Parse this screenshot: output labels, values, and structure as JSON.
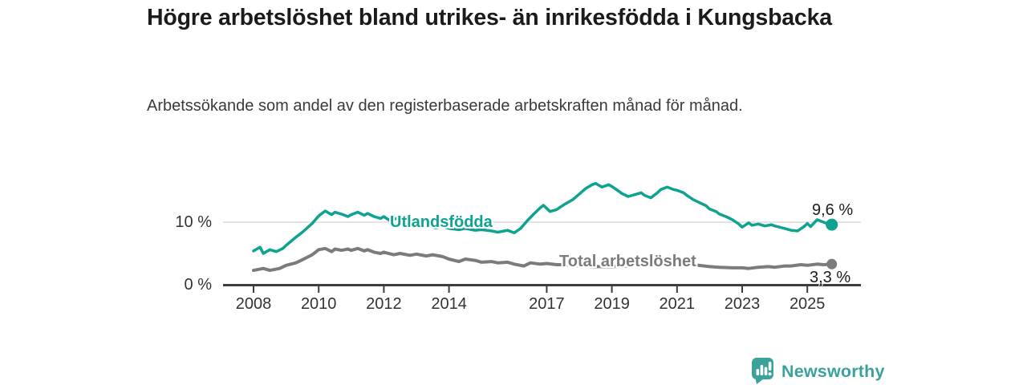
{
  "header": {
    "title": "Högre arbetslöshet bland utrikes- än inrikesfödda i Kungsbacka",
    "subtitle": "Arbetssökande som andel av den registerbaserade arbetskraften månad för månad."
  },
  "chart_data": {
    "type": "line",
    "title": "Högre arbetslöshet bland utrikes- än inrikesfödda i Kungsbacka",
    "unit": "%",
    "grid": "horizontal-10-only",
    "legend_position": "inline-labels-on-lines",
    "x_axis": {
      "range_years": [
        2007.9,
        2026.2
      ],
      "tick_labels": [
        "2008",
        "2010",
        "2012",
        "2014",
        "2017",
        "2019",
        "2021",
        "2023",
        "2025"
      ],
      "tick_years": [
        2008,
        2010,
        2012,
        2014,
        2017,
        2019,
        2021,
        2023,
        2025
      ]
    },
    "y_axis": {
      "range": [
        0,
        19
      ],
      "ticks": [
        {
          "value": 0,
          "label": "0 %"
        },
        {
          "value": 10,
          "label": "10 %"
        }
      ]
    },
    "series": [
      {
        "name": "Utlandsfödda",
        "color": "#0da390",
        "end_value": 9.6,
        "end_label": "9,6 %",
        "points": [
          [
            2008.0,
            5.4
          ],
          [
            2008.2,
            6.0
          ],
          [
            2008.3,
            5.0
          ],
          [
            2008.5,
            5.6
          ],
          [
            2008.7,
            5.3
          ],
          [
            2008.9,
            5.8
          ],
          [
            2009.0,
            6.3
          ],
          [
            2009.3,
            7.6
          ],
          [
            2009.5,
            8.4
          ],
          [
            2009.8,
            9.8
          ],
          [
            2010.0,
            11.0
          ],
          [
            2010.2,
            11.8
          ],
          [
            2010.4,
            11.2
          ],
          [
            2010.5,
            11.6
          ],
          [
            2010.7,
            11.3
          ],
          [
            2010.9,
            10.9
          ],
          [
            2011.0,
            11.2
          ],
          [
            2011.2,
            11.6
          ],
          [
            2011.4,
            11.1
          ],
          [
            2011.5,
            11.4
          ],
          [
            2011.7,
            10.9
          ],
          [
            2011.9,
            10.6
          ],
          [
            2012.0,
            10.9
          ],
          [
            2012.2,
            10.2
          ],
          [
            2012.4,
            10.6
          ],
          [
            2012.6,
            10.3
          ],
          [
            2012.8,
            10.0
          ],
          [
            2013.0,
            9.8
          ],
          [
            2013.3,
            9.4
          ],
          [
            2013.6,
            9.1
          ],
          [
            2013.8,
            9.3
          ],
          [
            2014.0,
            9.0
          ],
          [
            2014.3,
            8.8
          ],
          [
            2014.5,
            9.0
          ],
          [
            2014.8,
            8.7
          ],
          [
            2015.0,
            8.8
          ],
          [
            2015.3,
            8.6
          ],
          [
            2015.5,
            8.4
          ],
          [
            2015.8,
            8.7
          ],
          [
            2016.0,
            8.3
          ],
          [
            2016.2,
            9.0
          ],
          [
            2016.4,
            10.2
          ],
          [
            2016.6,
            11.3
          ],
          [
            2016.8,
            12.3
          ],
          [
            2016.9,
            12.7
          ],
          [
            2017.1,
            11.7
          ],
          [
            2017.3,
            12.0
          ],
          [
            2017.5,
            12.7
          ],
          [
            2017.8,
            13.6
          ],
          [
            2018.0,
            14.5
          ],
          [
            2018.2,
            15.4
          ],
          [
            2018.4,
            16.0
          ],
          [
            2018.5,
            16.2
          ],
          [
            2018.7,
            15.6
          ],
          [
            2018.9,
            16.0
          ],
          [
            2019.0,
            15.7
          ],
          [
            2019.2,
            15.0
          ],
          [
            2019.3,
            14.6
          ],
          [
            2019.5,
            14.1
          ],
          [
            2019.7,
            14.4
          ],
          [
            2019.9,
            14.7
          ],
          [
            2020.0,
            14.3
          ],
          [
            2020.2,
            13.9
          ],
          [
            2020.4,
            14.7
          ],
          [
            2020.5,
            15.2
          ],
          [
            2020.7,
            15.6
          ],
          [
            2020.9,
            15.2
          ],
          [
            2021.0,
            15.1
          ],
          [
            2021.2,
            14.7
          ],
          [
            2021.3,
            14.3
          ],
          [
            2021.5,
            13.6
          ],
          [
            2021.7,
            13.1
          ],
          [
            2021.9,
            12.6
          ],
          [
            2022.0,
            12.1
          ],
          [
            2022.2,
            11.7
          ],
          [
            2022.3,
            11.3
          ],
          [
            2022.5,
            10.9
          ],
          [
            2022.7,
            10.4
          ],
          [
            2022.9,
            9.7
          ],
          [
            2023.0,
            9.2
          ],
          [
            2023.2,
            9.9
          ],
          [
            2023.3,
            9.5
          ],
          [
            2023.5,
            9.7
          ],
          [
            2023.7,
            9.4
          ],
          [
            2023.9,
            9.6
          ],
          [
            2024.0,
            9.4
          ],
          [
            2024.3,
            9.0
          ],
          [
            2024.5,
            8.7
          ],
          [
            2024.7,
            8.6
          ],
          [
            2024.9,
            9.3
          ],
          [
            2025.0,
            9.8
          ],
          [
            2025.1,
            9.3
          ],
          [
            2025.3,
            10.4
          ],
          [
            2025.45,
            10.1
          ],
          [
            2025.6,
            9.8
          ],
          [
            2025.75,
            9.6
          ]
        ]
      },
      {
        "name": "Total arbetslöshet",
        "color": "#7b7b7b",
        "end_value": 3.3,
        "end_label": "3,3 %",
        "points": [
          [
            2008.0,
            2.3
          ],
          [
            2008.3,
            2.6
          ],
          [
            2008.5,
            2.3
          ],
          [
            2008.8,
            2.6
          ],
          [
            2009.0,
            3.1
          ],
          [
            2009.3,
            3.5
          ],
          [
            2009.5,
            4.0
          ],
          [
            2009.8,
            4.8
          ],
          [
            2010.0,
            5.6
          ],
          [
            2010.2,
            5.8
          ],
          [
            2010.4,
            5.3
          ],
          [
            2010.5,
            5.7
          ],
          [
            2010.7,
            5.5
          ],
          [
            2010.9,
            5.7
          ],
          [
            2011.0,
            5.5
          ],
          [
            2011.2,
            5.8
          ],
          [
            2011.4,
            5.4
          ],
          [
            2011.5,
            5.6
          ],
          [
            2011.7,
            5.2
          ],
          [
            2011.9,
            5.0
          ],
          [
            2012.0,
            5.2
          ],
          [
            2012.3,
            4.8
          ],
          [
            2012.5,
            5.0
          ],
          [
            2012.8,
            4.7
          ],
          [
            2013.0,
            4.9
          ],
          [
            2013.3,
            4.6
          ],
          [
            2013.5,
            4.8
          ],
          [
            2013.8,
            4.5
          ],
          [
            2014.0,
            4.1
          ],
          [
            2014.3,
            3.7
          ],
          [
            2014.5,
            4.1
          ],
          [
            2014.8,
            3.9
          ],
          [
            2015.0,
            3.6
          ],
          [
            2015.3,
            3.7
          ],
          [
            2015.5,
            3.5
          ],
          [
            2015.8,
            3.6
          ],
          [
            2016.0,
            3.3
          ],
          [
            2016.3,
            3.0
          ],
          [
            2016.5,
            3.5
          ],
          [
            2016.8,
            3.3
          ],
          [
            2017.0,
            3.4
          ],
          [
            2017.3,
            3.2
          ],
          [
            2017.5,
            3.2
          ],
          [
            2017.8,
            3.1
          ],
          [
            2018.0,
            3.0
          ],
          [
            2018.5,
            2.9
          ],
          [
            2019.0,
            2.9
          ],
          [
            2019.5,
            3.0
          ],
          [
            2020.0,
            3.2
          ],
          [
            2020.5,
            3.7
          ],
          [
            2021.0,
            3.5
          ],
          [
            2021.5,
            3.2
          ],
          [
            2022.0,
            2.9
          ],
          [
            2022.3,
            2.8
          ],
          [
            2022.7,
            2.7
          ],
          [
            2023.0,
            2.7
          ],
          [
            2023.2,
            2.6
          ],
          [
            2023.5,
            2.8
          ],
          [
            2023.8,
            2.9
          ],
          [
            2024.0,
            2.8
          ],
          [
            2024.3,
            3.0
          ],
          [
            2024.5,
            3.0
          ],
          [
            2024.8,
            3.2
          ],
          [
            2025.0,
            3.1
          ],
          [
            2025.3,
            3.3
          ],
          [
            2025.5,
            3.2
          ],
          [
            2025.75,
            3.3
          ]
        ]
      }
    ],
    "colors": {
      "grid": "#dcdcdc",
      "axis": "#3c3c3c",
      "tick_text": "#333333",
      "annotation_text": "#1b1b1b"
    }
  },
  "footer": {
    "brand": "Newsworthy",
    "brand_color": "#3aa29b",
    "logo_icon": "bar-chart-speech-bubble"
  }
}
